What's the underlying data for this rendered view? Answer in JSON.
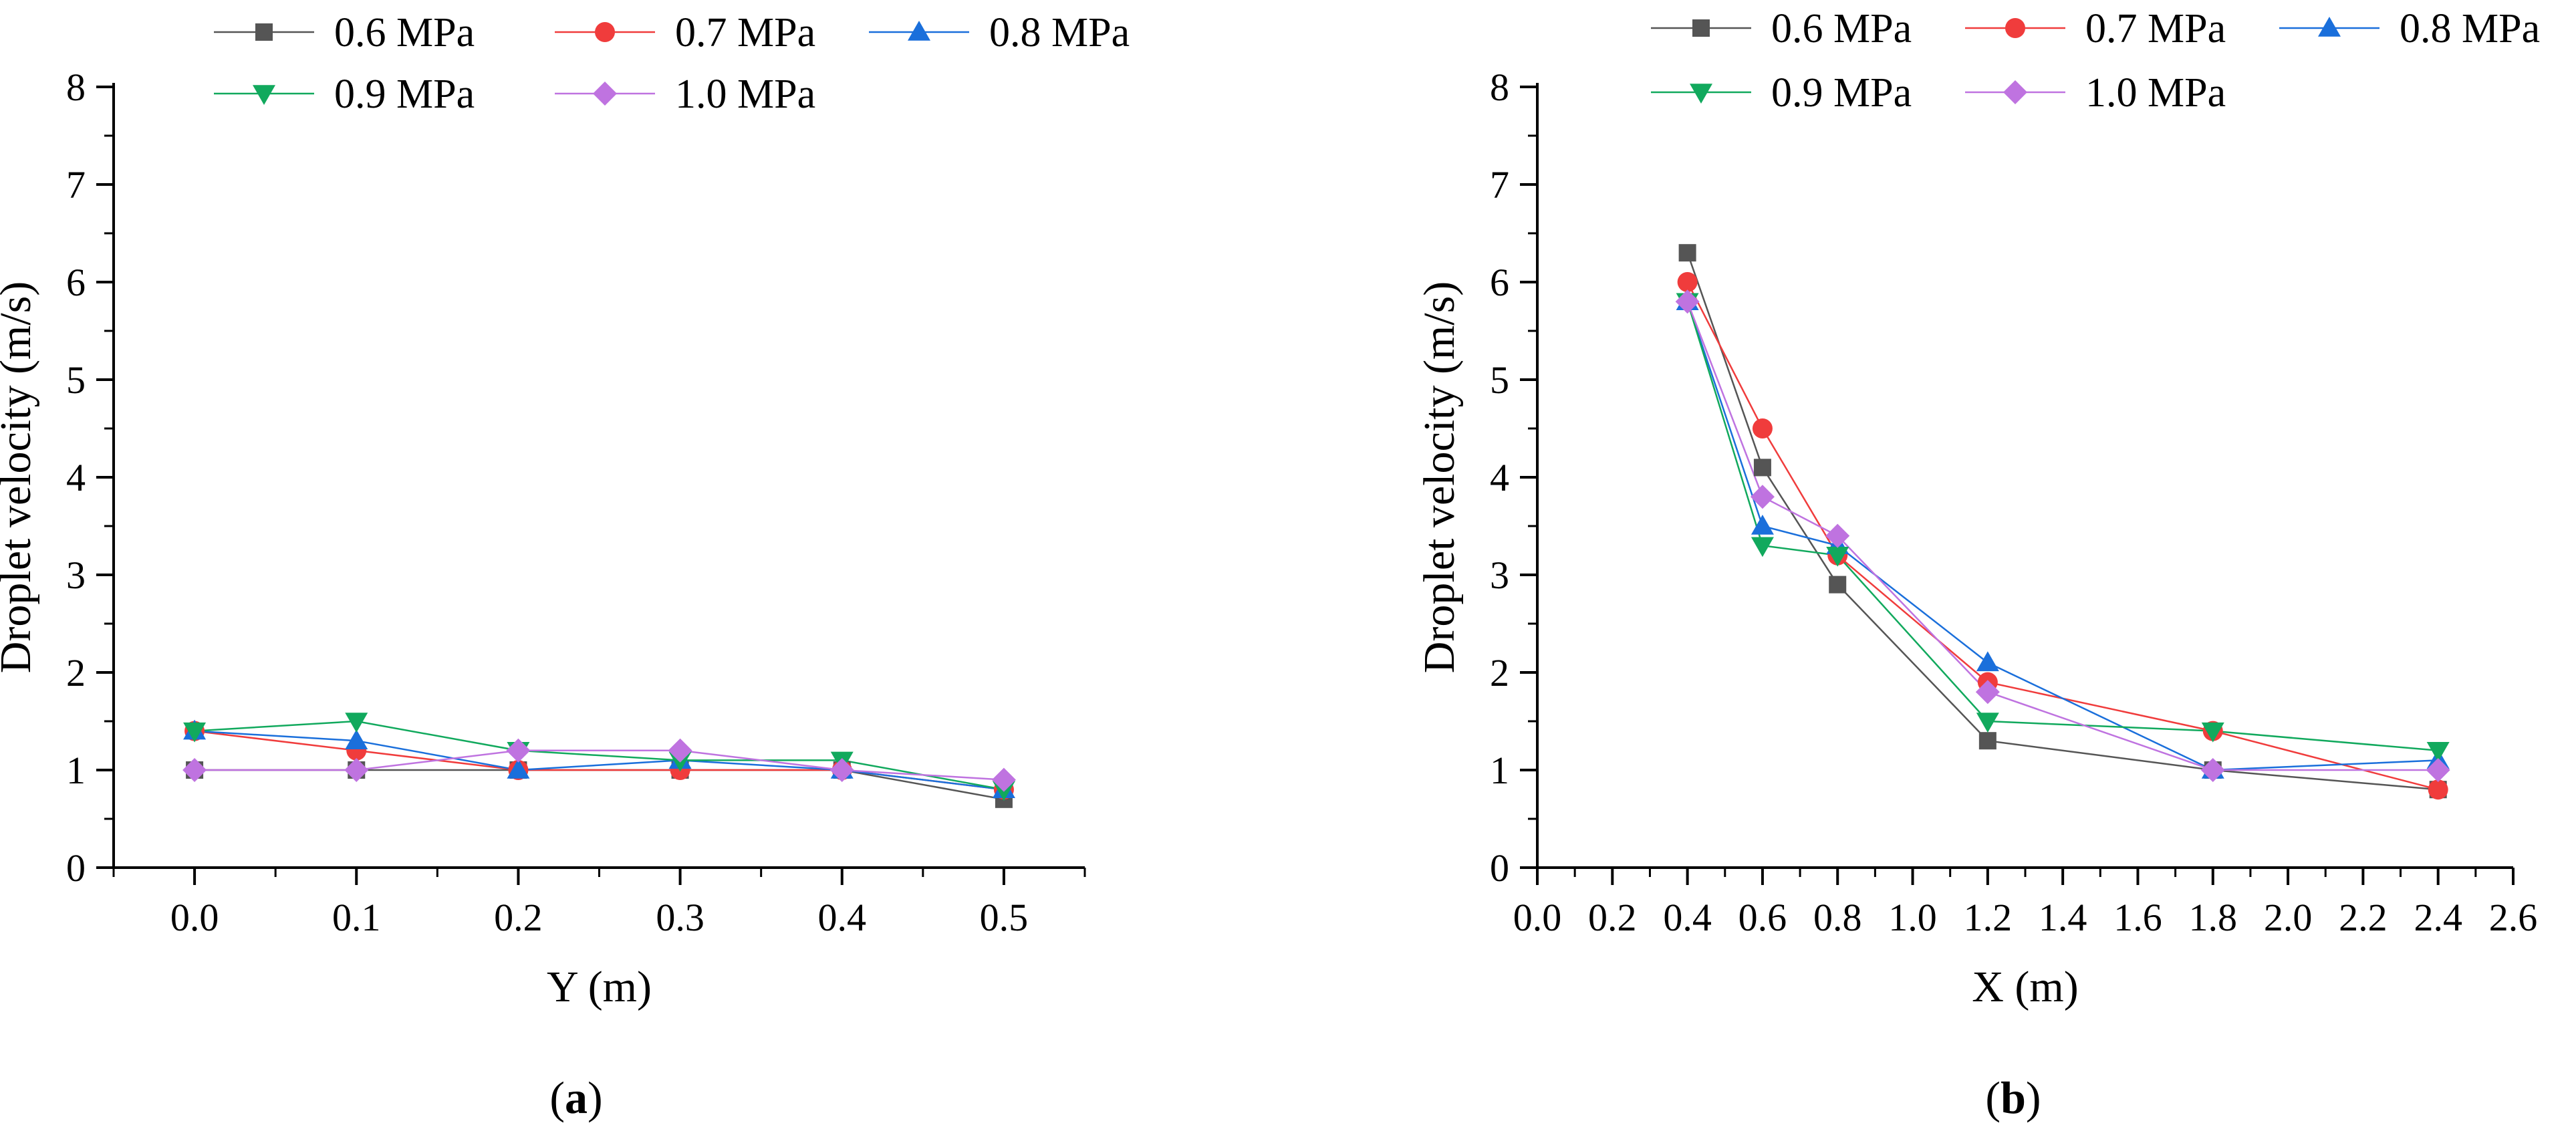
{
  "chart_data": [
    {
      "type": "line",
      "panel": "a",
      "caption_open": "(",
      "caption_letter": "a",
      "caption_close": ")",
      "xlabel": "Y (m)",
      "ylabel": "Droplet velocity (m/s)",
      "xlim": [
        -0.05,
        0.55
      ],
      "ylim": [
        0,
        8
      ],
      "xticks": [
        "0.0",
        "0.1",
        "0.2",
        "0.3",
        "0.4",
        "0.5"
      ],
      "xtick_values": [
        0.0,
        0.1,
        0.2,
        0.3,
        0.4,
        0.5
      ],
      "yticks": [
        "0",
        "1",
        "2",
        "3",
        "4",
        "5",
        "6",
        "7",
        "8"
      ],
      "ytick_values": [
        0,
        1,
        2,
        3,
        4,
        5,
        6,
        7,
        8
      ],
      "x": [
        0.0,
        0.1,
        0.2,
        0.3,
        0.4,
        0.5
      ],
      "series": [
        {
          "name": "0.6 MPa",
          "color": "#555555",
          "marker": "square",
          "values": [
            1.0,
            1.0,
            1.0,
            1.0,
            1.0,
            0.7
          ]
        },
        {
          "name": "0.7 MPa",
          "color": "#f03c3c",
          "marker": "circle",
          "values": [
            1.4,
            1.2,
            1.0,
            1.0,
            1.0,
            0.8
          ]
        },
        {
          "name": "0.8 MPa",
          "color": "#1a6fdb",
          "marker": "triangle-up",
          "values": [
            1.4,
            1.3,
            1.0,
            1.1,
            1.0,
            0.8
          ]
        },
        {
          "name": "0.9 MPa",
          "color": "#11a95d",
          "marker": "triangle-down",
          "values": [
            1.4,
            1.5,
            1.2,
            1.1,
            1.1,
            0.8
          ]
        },
        {
          "name": "1.0 MPa",
          "color": "#bf73e0",
          "marker": "diamond",
          "values": [
            1.0,
            1.0,
            1.2,
            1.2,
            1.0,
            0.9
          ]
        }
      ],
      "legend": "top"
    },
    {
      "type": "line",
      "panel": "b",
      "caption_open": "(",
      "caption_letter": "b",
      "caption_close": ")",
      "xlabel": "X (m)",
      "ylabel": "Droplet velocity (m/s)",
      "xlim": [
        0.0,
        2.6
      ],
      "ylim": [
        0,
        8
      ],
      "xticks": [
        "0.0",
        "0.2",
        "0.4",
        "0.6",
        "0.8",
        "1.0",
        "1.2",
        "1.4",
        "1.6",
        "1.8",
        "2.0",
        "2.2",
        "2.4",
        "2.6"
      ],
      "xtick_values": [
        0.0,
        0.2,
        0.4,
        0.6,
        0.8,
        1.0,
        1.2,
        1.4,
        1.6,
        1.8,
        2.0,
        2.2,
        2.4,
        2.6
      ],
      "yticks": [
        "0",
        "1",
        "2",
        "3",
        "4",
        "5",
        "6",
        "7",
        "8"
      ],
      "ytick_values": [
        0,
        1,
        2,
        3,
        4,
        5,
        6,
        7,
        8
      ],
      "x": [
        0.4,
        0.6,
        0.8,
        1.2,
        1.8,
        2.4
      ],
      "series": [
        {
          "name": "0.6 MPa",
          "color": "#555555",
          "marker": "square",
          "values": [
            6.3,
            4.1,
            2.9,
            1.3,
            1.0,
            0.8
          ]
        },
        {
          "name": "0.7 MPa",
          "color": "#f03c3c",
          "marker": "circle",
          "values": [
            6.0,
            4.5,
            3.2,
            1.9,
            1.4,
            0.8
          ]
        },
        {
          "name": "0.8 MPa",
          "color": "#1a6fdb",
          "marker": "triangle-up",
          "values": [
            5.8,
            3.5,
            3.3,
            2.1,
            1.0,
            1.1
          ]
        },
        {
          "name": "0.9 MPa",
          "color": "#11a95d",
          "marker": "triangle-down",
          "values": [
            5.8,
            3.3,
            3.2,
            1.5,
            1.4,
            1.2
          ]
        },
        {
          "name": "1.0 MPa",
          "color": "#bf73e0",
          "marker": "diamond",
          "values": [
            5.8,
            3.8,
            3.4,
            1.8,
            1.0,
            1.0
          ]
        }
      ],
      "legend": "top"
    }
  ]
}
